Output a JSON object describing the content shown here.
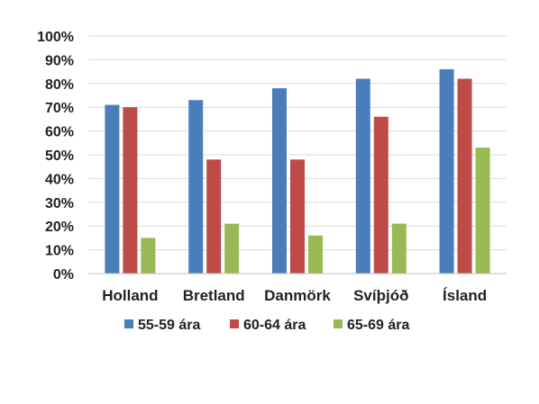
{
  "chart_data": {
    "type": "bar",
    "title": "",
    "xlabel": "",
    "ylabel": "",
    "categories": [
      "Holland",
      "Bretland",
      "Danmörk",
      "Svíþjóð",
      "Ísland"
    ],
    "series": [
      {
        "name": "55-59 ára",
        "color": "#4a7ebb",
        "values": [
          71,
          73,
          78,
          82,
          86
        ]
      },
      {
        "name": "60-64 ára",
        "color": "#be4b48",
        "values": [
          70,
          48,
          48,
          66,
          82
        ]
      },
      {
        "name": "65-69 ára",
        "color": "#98b954",
        "values": [
          15,
          21,
          16,
          21,
          53
        ]
      }
    ],
    "ylim": [
      0,
      100
    ],
    "yticks": [
      "0%",
      "10%",
      "20%",
      "30%",
      "40%",
      "50%",
      "60%",
      "70%",
      "80%",
      "90%",
      "100%"
    ],
    "grid": true,
    "legend_position": "bottom"
  }
}
